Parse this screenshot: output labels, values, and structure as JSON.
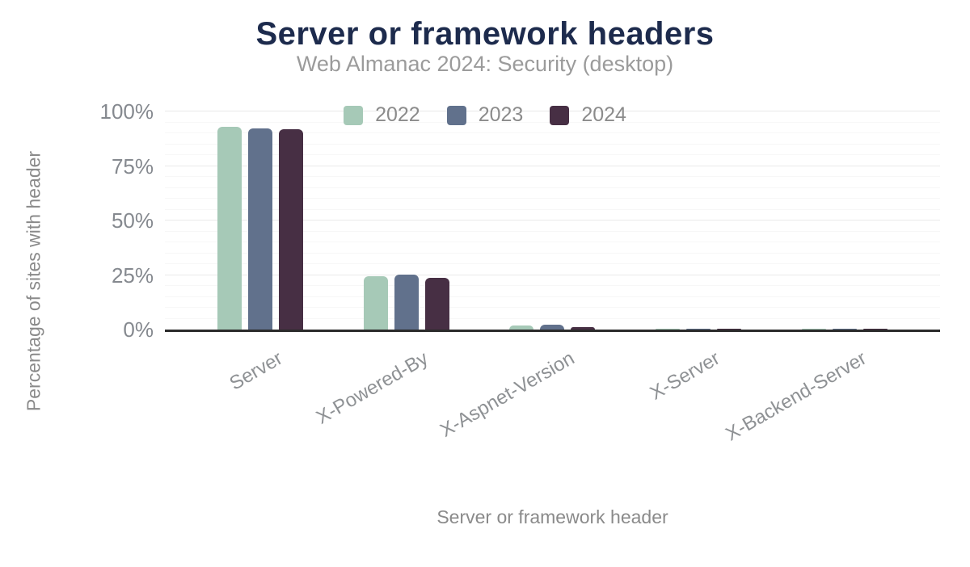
{
  "chart_data": {
    "type": "bar",
    "title": "Server or framework headers",
    "subtitle": "Web Almanac 2024: Security (desktop)",
    "xlabel": "Server or framework header",
    "ylabel": "Percentage of sites with header",
    "categories": [
      "Server",
      "X-Powered-By",
      "X-Aspnet-Version",
      "X-Server",
      "X-Backend-Server"
    ],
    "series": [
      {
        "name": "2022",
        "color": "#a6c9b7",
        "values": [
          93,
          24.6,
          2.0,
          0.5,
          0.5
        ]
      },
      {
        "name": "2023",
        "color": "#61718c",
        "values": [
          92.2,
          25.2,
          2.2,
          0.5,
          0.5
        ]
      },
      {
        "name": "2024",
        "color": "#472f44",
        "values": [
          91.8,
          23.7,
          1.2,
          0.4,
          0.4
        ]
      }
    ],
    "y_axis": {
      "min": 0,
      "max": 100,
      "tick_step": 25,
      "minor_step": 5,
      "tick_suffix": "%",
      "tick_labels": [
        "0%",
        "25%",
        "50%",
        "75%",
        "100%"
      ]
    },
    "legend_position": "top",
    "grid": true,
    "colors": {
      "title": "#1d2b4d",
      "subtitle": "#9b9b9b",
      "axis_text": "#8a8a8a",
      "tick_text": "#85898f",
      "axis_line": "#2b2b2b",
      "grid_major": "#e9e9e9",
      "grid_minor": "#f7f7f7",
      "background": "#ffffff"
    }
  }
}
